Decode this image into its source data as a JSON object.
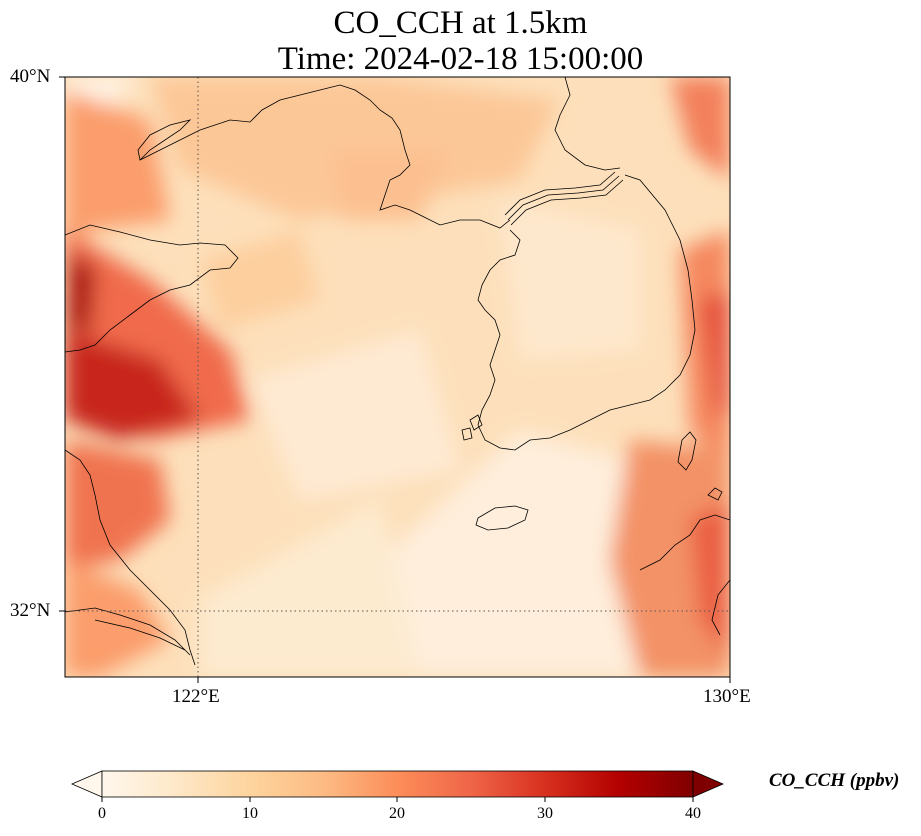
{
  "title": {
    "line1": "CO_CCH at 1.5km",
    "line2": "Time: 2024-02-18 15:00:00"
  },
  "map": {
    "lat_ticks": [
      "40°N",
      "32°N"
    ],
    "lon_ticks": [
      "122°E",
      "130°E"
    ],
    "extent": {
      "lon_min": 120,
      "lon_max": 130,
      "lat_min": 31,
      "lat_max": 40
    },
    "gridlines": {
      "lon": 122,
      "lat": 32,
      "style": "dotted"
    }
  },
  "colorbar": {
    "label": "CO_CCH (ppbv)",
    "ticks": [
      "0",
      "10",
      "20",
      "30",
      "40"
    ],
    "range": [
      0,
      40
    ],
    "cmap": "OrRd",
    "colors": [
      "#fff7ec",
      "#fee8c8",
      "#fdd49e",
      "#fdbb84",
      "#fc8d59",
      "#ef6548",
      "#d7301f",
      "#b30000",
      "#7f0000"
    ]
  }
}
